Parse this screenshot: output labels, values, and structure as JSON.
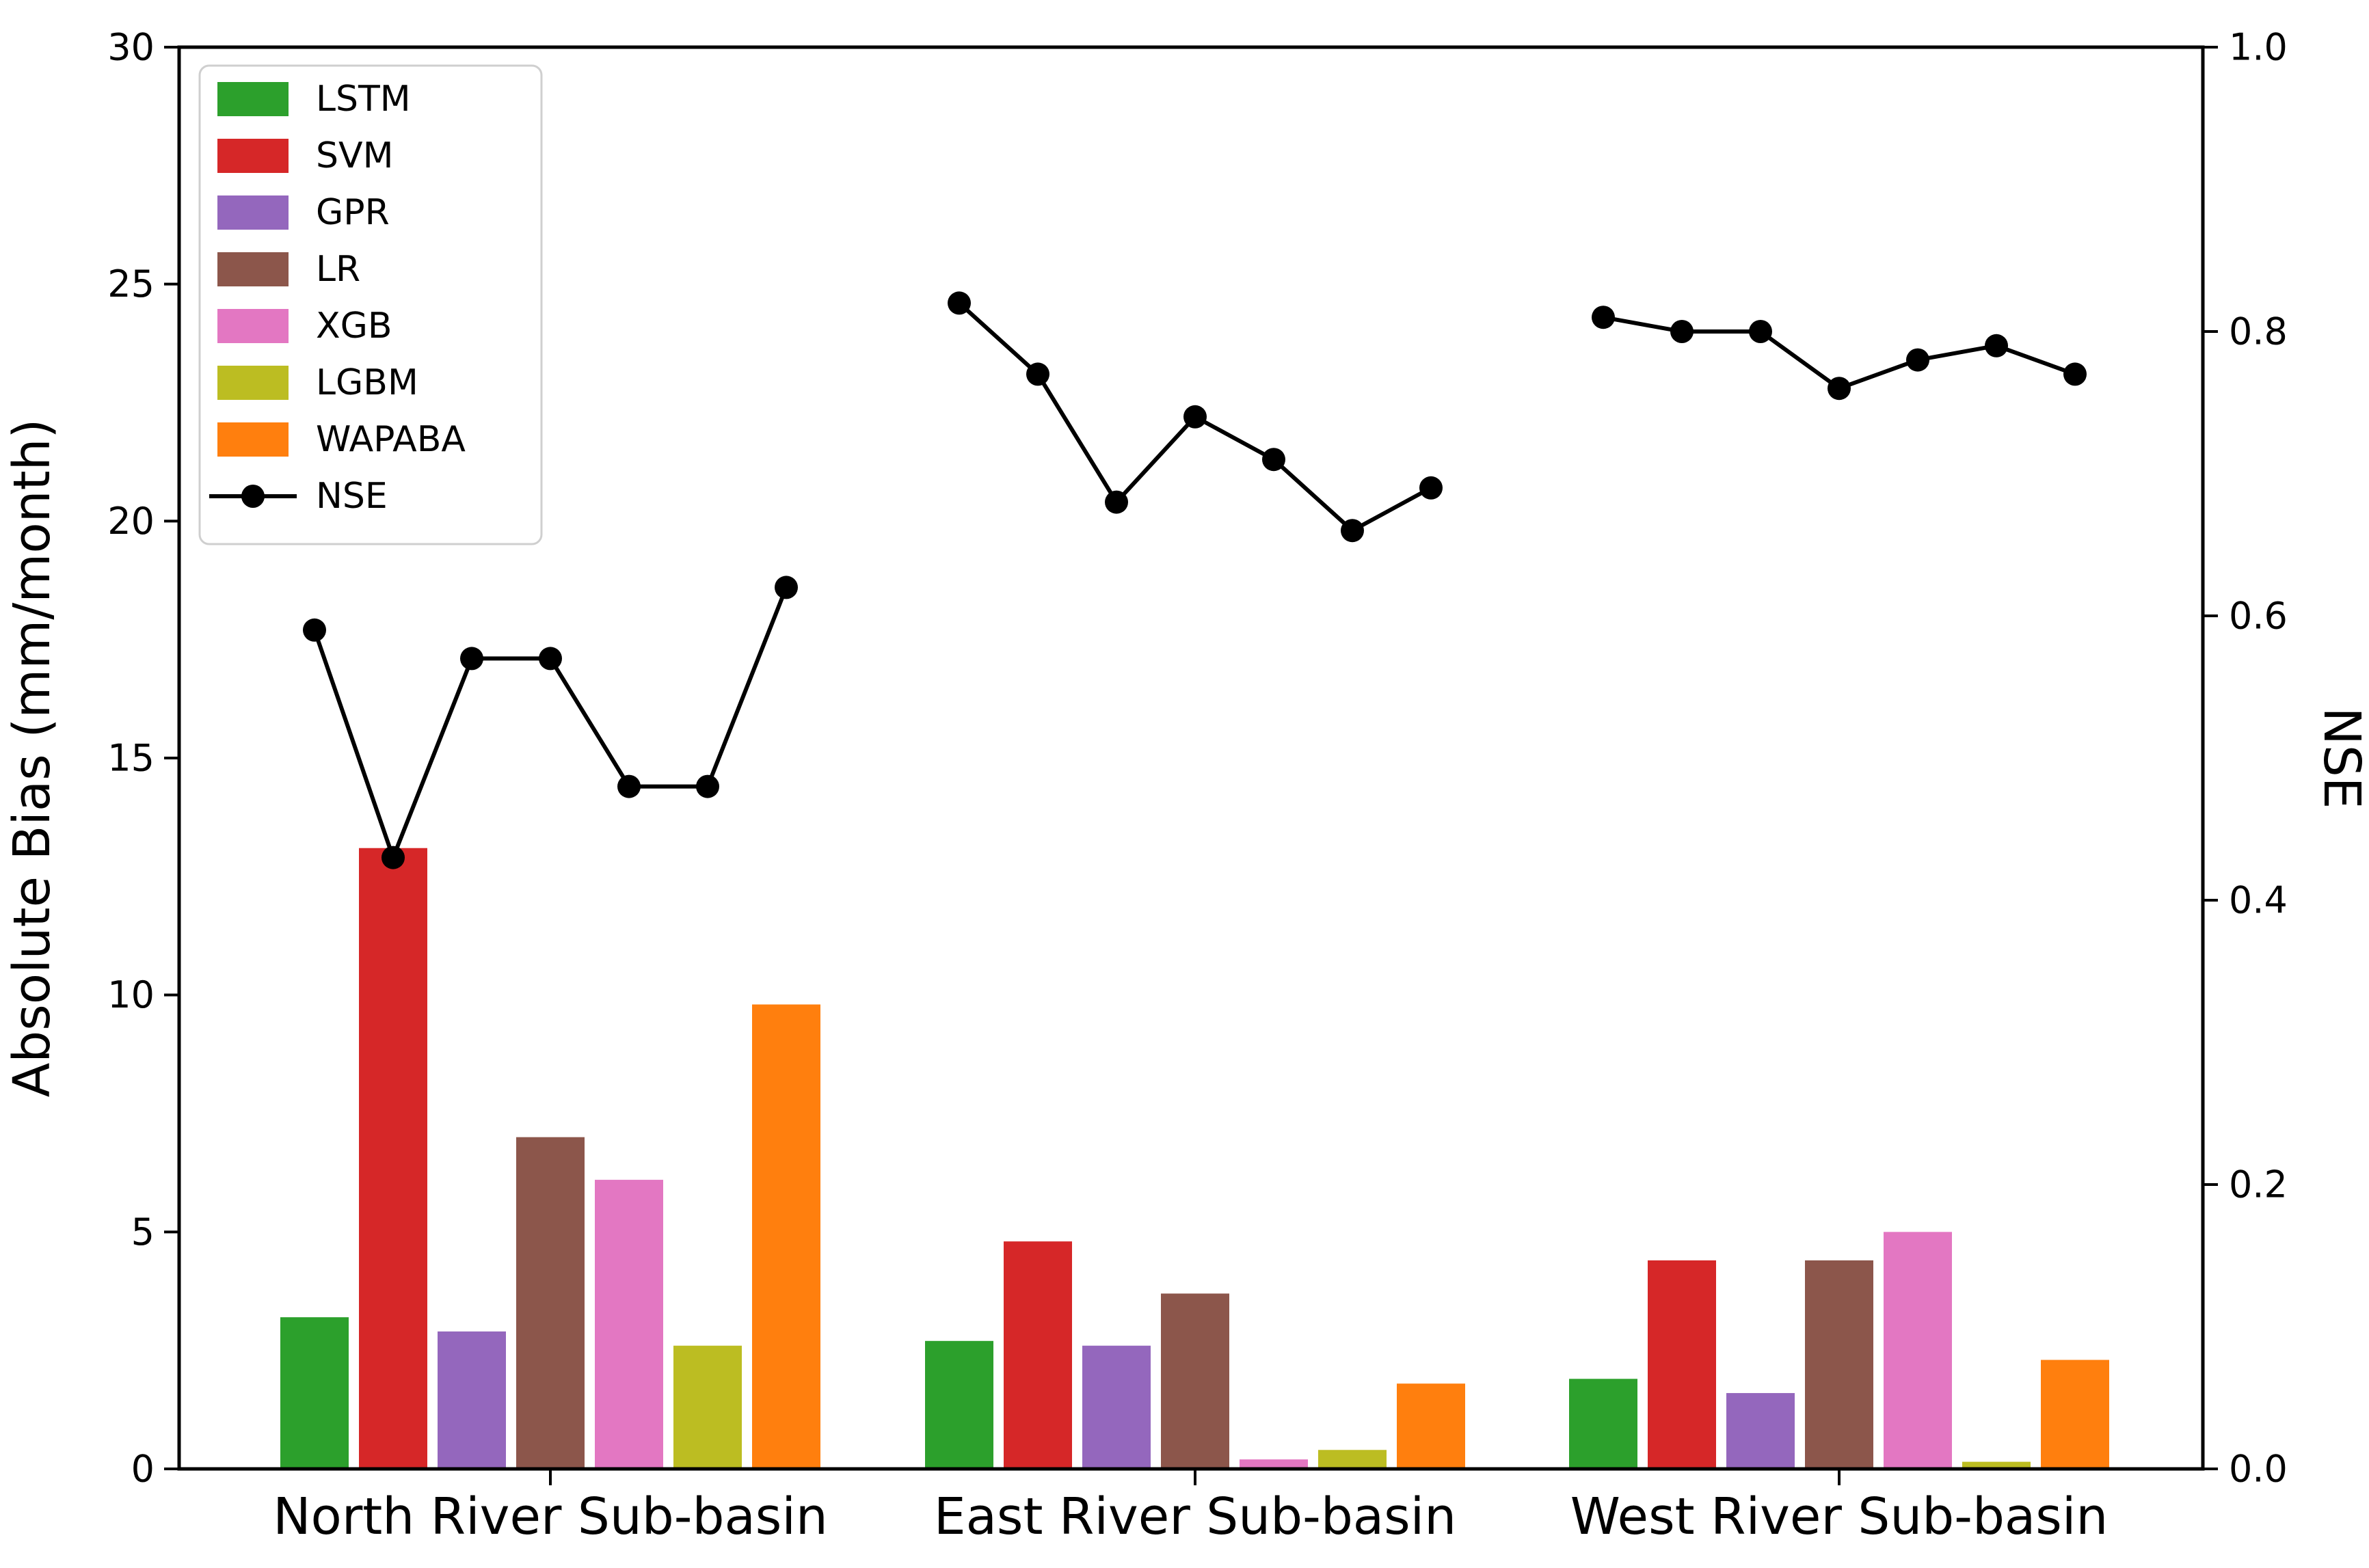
{
  "chart_data": {
    "type": "bar+line",
    "title": "",
    "categories": [
      "North River Sub-basin",
      "East River Sub-basin",
      "West River Sub-basin"
    ],
    "bar_unit": "mm/month",
    "series": [
      {
        "name": "LSTM",
        "color": "#2ca02c",
        "values": [
          3.2,
          2.7,
          1.9
        ]
      },
      {
        "name": "SVM",
        "color": "#d62728",
        "values": [
          13.1,
          4.8,
          4.4
        ]
      },
      {
        "name": "GPR",
        "color": "#9467bd",
        "values": [
          2.9,
          2.6,
          1.6
        ]
      },
      {
        "name": "LR",
        "color": "#8c564b",
        "values": [
          7.0,
          3.7,
          4.4
        ]
      },
      {
        "name": "XGB",
        "color": "#e377c2",
        "values": [
          6.1,
          0.2,
          5.0
        ]
      },
      {
        "name": "LGBM",
        "color": "#bcbd22",
        "values": [
          2.6,
          0.4,
          0.15
        ]
      },
      {
        "name": "WAPABA",
        "color": "#ff7f0e",
        "values": [
          9.8,
          1.8,
          2.3
        ]
      }
    ],
    "line_series": {
      "name": "NSE",
      "color": "#000000",
      "values_by_group": [
        [
          0.59,
          0.43,
          0.57,
          0.57,
          0.48,
          0.48,
          0.62
        ],
        [
          0.82,
          0.77,
          0.68,
          0.74,
          0.71,
          0.66,
          0.69
        ],
        [
          0.81,
          0.8,
          0.8,
          0.76,
          0.78,
          0.79,
          0.77
        ]
      ]
    },
    "left_axis": {
      "label": "Absolute Bias (mm/month)",
      "min": 0,
      "max": 30,
      "ticks": [
        "0",
        "5",
        "10",
        "15",
        "20",
        "25",
        "30"
      ]
    },
    "right_axis": {
      "label": "NSE",
      "min": 0.0,
      "max": 1.0,
      "ticks": [
        "0.0",
        "0.2",
        "0.4",
        "0.6",
        "0.8",
        "1.0"
      ]
    },
    "legend": {
      "entries": [
        "LSTM",
        "SVM",
        "GPR",
        "LR",
        "XGB",
        "LGBM",
        "WAPABA",
        "NSE"
      ],
      "position": "upper left"
    },
    "grid": false,
    "background": "#ffffff"
  }
}
